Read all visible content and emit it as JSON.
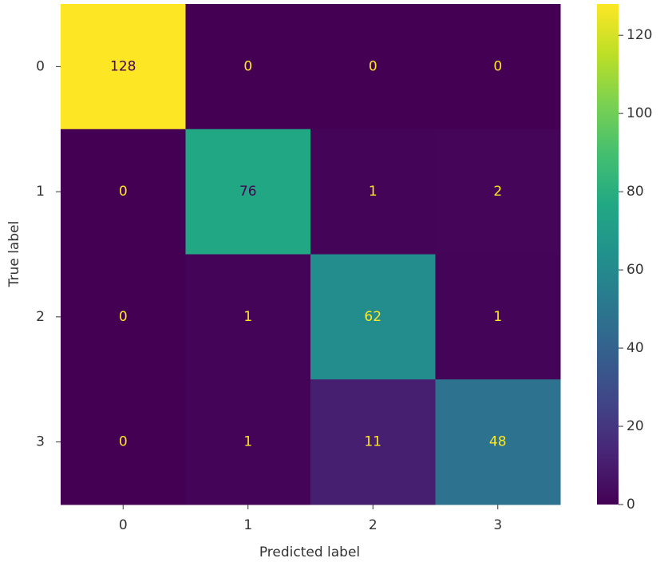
{
  "chart_data": {
    "type": "heatmap",
    "x_categories": [
      "0",
      "1",
      "2",
      "3"
    ],
    "y_categories": [
      "0",
      "1",
      "2",
      "3"
    ],
    "values": [
      [
        128,
        0,
        0,
        0
      ],
      [
        0,
        76,
        1,
        2
      ],
      [
        0,
        1,
        62,
        1
      ],
      [
        0,
        1,
        11,
        48
      ]
    ],
    "xlabel": "Predicted label",
    "ylabel": "True label",
    "colormap": "viridis",
    "clim": [
      0,
      128
    ],
    "colorbar_ticks": [
      0,
      20,
      40,
      60,
      80,
      100,
      120
    ]
  }
}
